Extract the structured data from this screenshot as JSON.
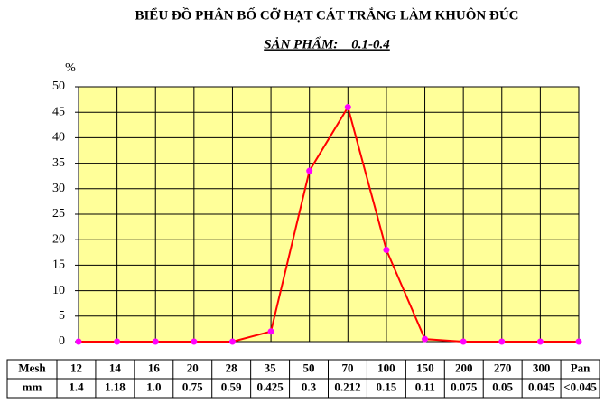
{
  "chart_data": {
    "type": "line",
    "title": "BIỂU ĐỒ PHÂN BỐ CỠ HẠT CÁT TRẮNG LÀM KHUÔN ĐÚC",
    "subtitle": "SẢN PHẨM:    0.1-0.4",
    "y_label": "%",
    "categories": [
      "12",
      "14",
      "16",
      "20",
      "28",
      "35",
      "50",
      "70",
      "100",
      "150",
      "200",
      "270",
      "300",
      "Pan"
    ],
    "values": [
      0,
      0,
      0,
      0,
      0,
      2,
      33.5,
      46,
      18,
      0.5,
      0,
      0,
      0,
      0
    ],
    "color": "#ff0000",
    "marker_color": "#ff00ff",
    "background": "#ffff99",
    "ylim": [
      0,
      50
    ],
    "yticks": [
      0,
      5,
      10,
      15,
      20,
      25,
      30,
      35,
      40,
      45,
      50
    ],
    "grid": true
  },
  "table": {
    "row_labels": [
      "Mesh",
      "mm"
    ],
    "mm": [
      "1.4",
      "1.18",
      "1.0",
      "0.75",
      "0.59",
      "0.425",
      "0.3",
      "0.212",
      "0.15",
      "0.11",
      "0.075",
      "0.05",
      "0.045",
      "<0.045"
    ]
  }
}
